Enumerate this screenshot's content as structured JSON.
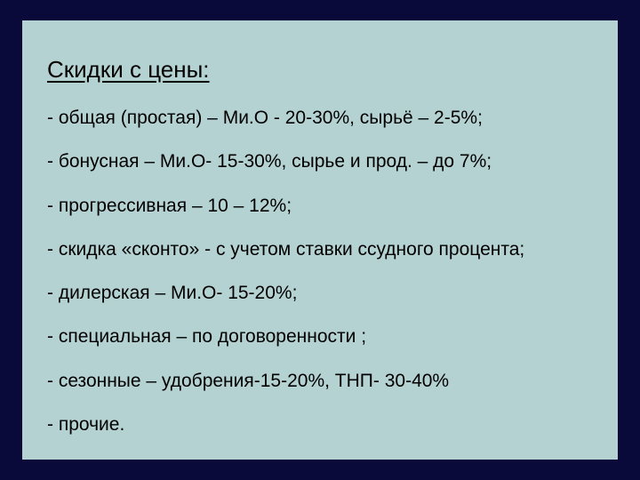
{
  "background_color": "#0a0a3a",
  "card": {
    "background_color": "#b5d2d3",
    "border_color": "#0a0a3a"
  },
  "title": "Скидки с цены:",
  "items": [
    "- общая (простая) – Ми.О - 20-30%, сырьё – 2-5%;",
    "- бонусная – Ми.О- 15-30%, сырье и прод. – до 7%;",
    "- прогрессивная – 10 – 12%;",
    "- скидка «сконто» - с учетом ставки ссудного процента;",
    "- дилерская – Ми.О- 15-20%;",
    "- специальная – по договоренности ;",
    "- сезонные – удобрения-15-20%, ТНП- 30-40%",
    "- прочие."
  ],
  "typography": {
    "title_fontsize": 26,
    "item_fontsize": 21,
    "font_family": "Arial"
  }
}
